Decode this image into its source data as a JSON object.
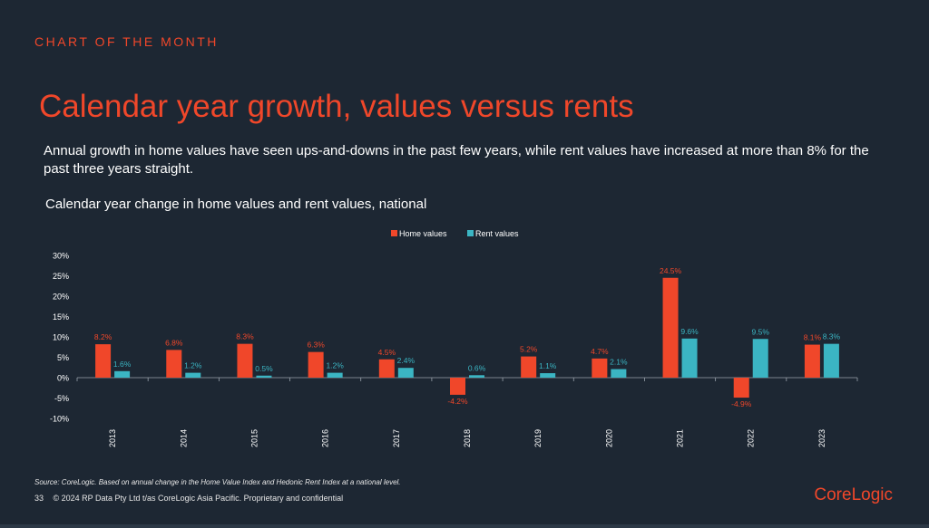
{
  "header": {
    "kicker": "CHART OF THE MONTH",
    "title": "Calendar year growth, values versus rents",
    "subtitle": "Annual growth in home values have seen ups-and-downs in the past few years, while rent values have increased at more than 8% for the past three years straight."
  },
  "chart_data": {
    "type": "bar",
    "title": "Calendar year change in home values and rent values, national",
    "categories": [
      "2013",
      "2014",
      "2015",
      "2016",
      "2017",
      "2018",
      "2019",
      "2020",
      "2021",
      "2022",
      "2023"
    ],
    "series": [
      {
        "name": "Home values",
        "color": "#f0472a",
        "values": [
          8.2,
          6.8,
          8.3,
          6.3,
          4.5,
          -4.2,
          5.2,
          4.7,
          24.5,
          -4.9,
          8.1
        ],
        "labels": [
          "8.2%",
          "6.8%",
          "8.3%",
          "6.3%",
          "4.5%",
          "-4.2%",
          "5.2%",
          "4.7%",
          "24.5%",
          "-4.9%",
          "8.1%"
        ]
      },
      {
        "name": "Rent values",
        "color": "#3bb5c3",
        "values": [
          1.6,
          1.2,
          0.5,
          1.2,
          2.4,
          0.6,
          1.1,
          2.1,
          9.6,
          9.5,
          8.3
        ],
        "labels": [
          "1.6%",
          "1.2%",
          "0.5%",
          "1.2%",
          "2.4%",
          "0.6%",
          "1.1%",
          "2.1%",
          "9.6%",
          "9.5%",
          "8.3%"
        ]
      }
    ],
    "ylim": [
      -10,
      30
    ],
    "yticks": [
      -10,
      -5,
      0,
      5,
      10,
      15,
      20,
      25,
      30
    ],
    "ytick_labels": [
      "-10%",
      "-5%",
      "0%",
      "5%",
      "10%",
      "15%",
      "20%",
      "25%",
      "30%"
    ],
    "legend_position": "top-center",
    "grid": false
  },
  "footer": {
    "source": "Source: CoreLogic. Based on annual change in the Home Value Index and Hedonic Rent Index at a national level.",
    "page_number": "33",
    "copyright": "© 2024 RP Data Pty Ltd t/as CoreLogic Asia Pacific. Proprietary and confidential",
    "brand": "CoreLogic"
  },
  "colors": {
    "background": "#1d2733",
    "accent": "#f0472a",
    "rent": "#3bb5c3"
  }
}
